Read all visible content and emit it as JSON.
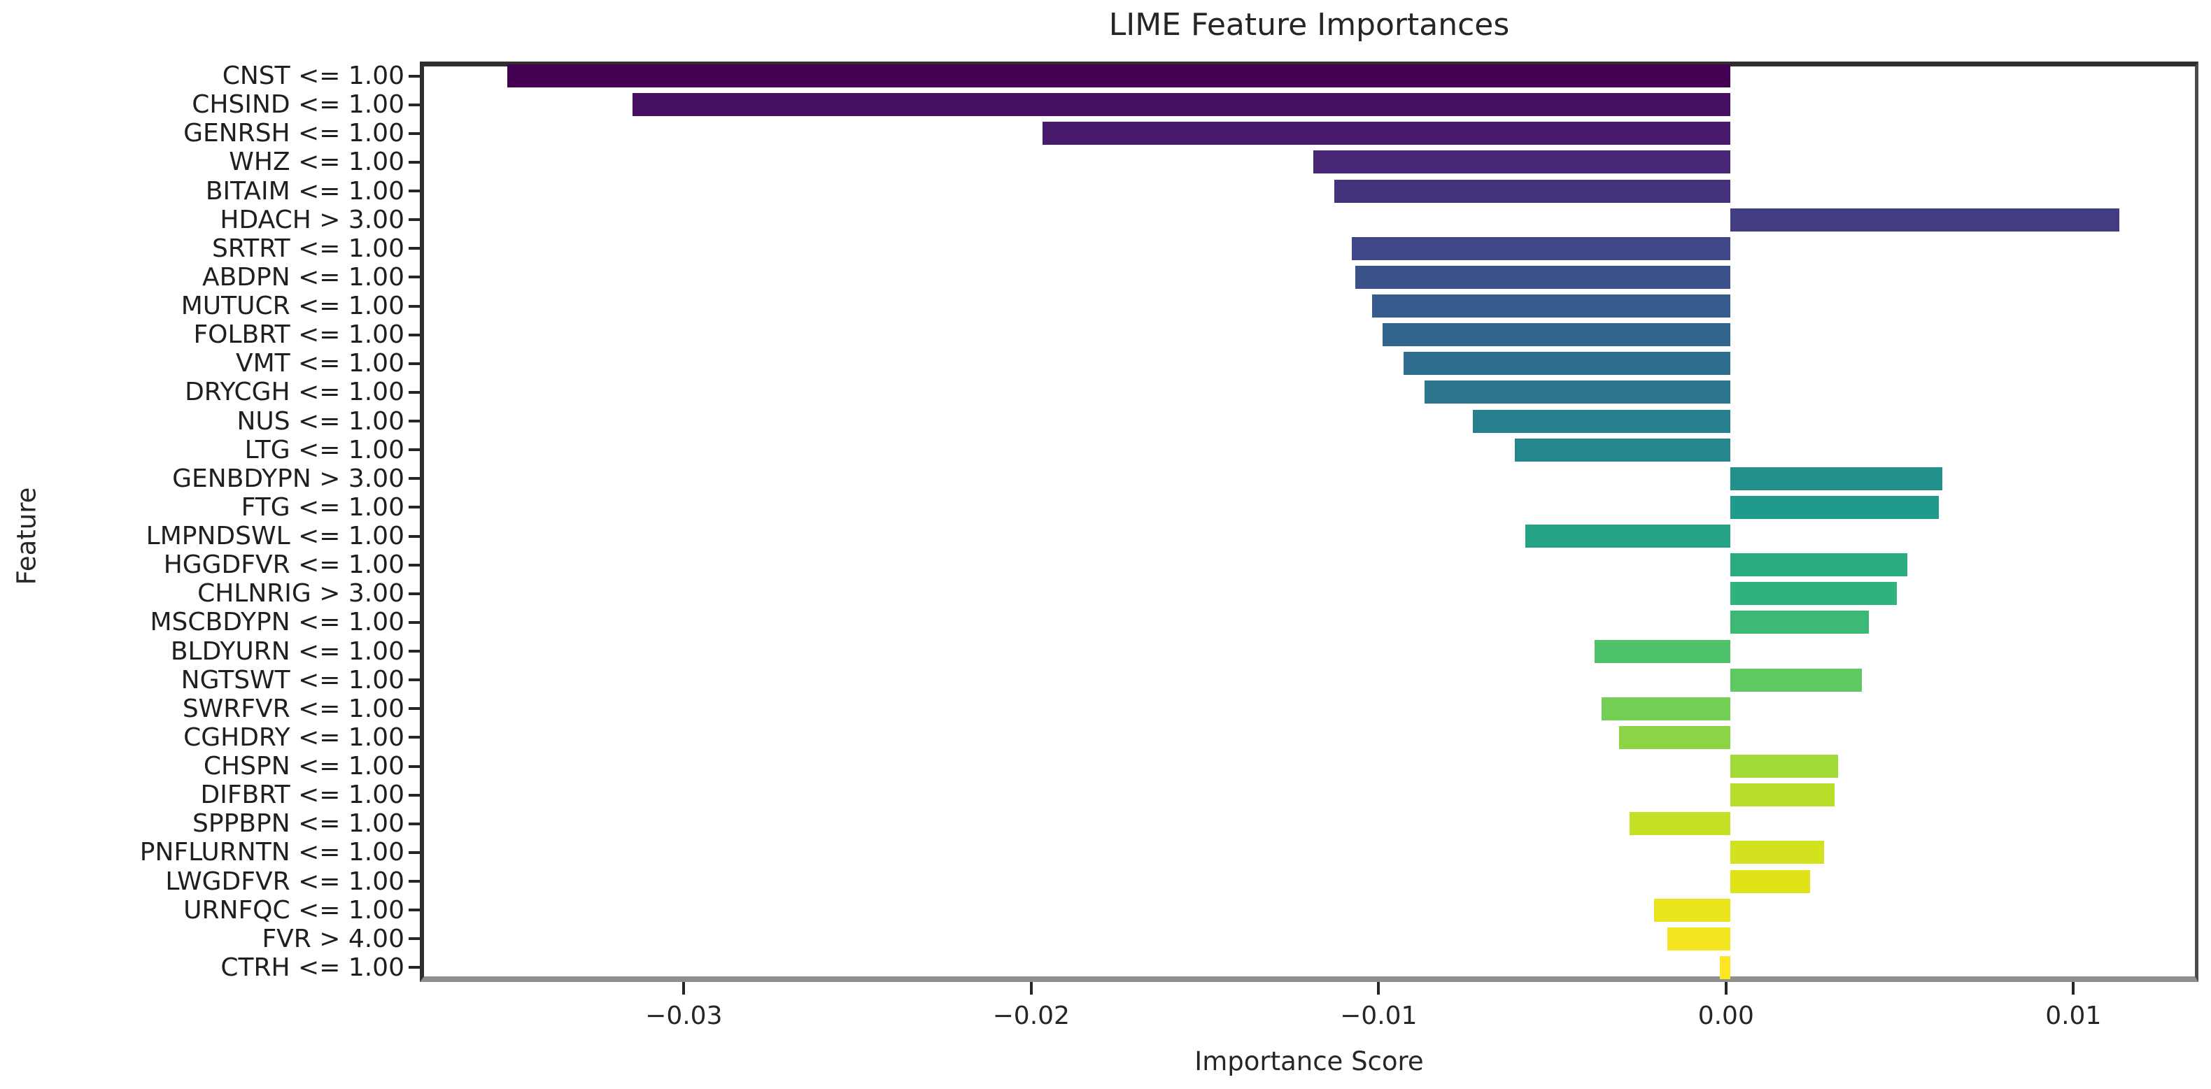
{
  "figure": {
    "title": "LIME Feature Importances",
    "xlabel": "Importance Score",
    "ylabel": "Feature"
  },
  "chart_data": {
    "type": "bar",
    "orientation": "horizontal",
    "title": "LIME Feature Importances",
    "xlabel": "Importance Score",
    "ylabel": "Feature",
    "xlim": [
      -0.0376,
      0.0136
    ],
    "grid": false,
    "legend": "none",
    "colormap": "viridis",
    "xticks": [
      {
        "value": -0.03,
        "label": "−0.03"
      },
      {
        "value": -0.02,
        "label": "−0.02"
      },
      {
        "value": -0.01,
        "label": "−0.01"
      },
      {
        "value": 0.0,
        "label": "0.00"
      },
      {
        "value": 0.01,
        "label": "0.01"
      }
    ],
    "bars": [
      {
        "label": "CNST <= 1.00",
        "value": -0.0352,
        "color": "#440154"
      },
      {
        "label": "CHSIND <= 1.00",
        "value": -0.0316,
        "color": "#450e60"
      },
      {
        "label": "GENRSH <= 1.00",
        "value": -0.0198,
        "color": "#471a6b"
      },
      {
        "label": "WHZ <= 1.00",
        "value": -0.012,
        "color": "#482777"
      },
      {
        "label": "BITAIM <= 1.00",
        "value": -0.0114,
        "color": "#45327d"
      },
      {
        "label": "HDACH > 3.00",
        "value": 0.0112,
        "color": "#423c82"
      },
      {
        "label": "SRTRT <= 1.00",
        "value": -0.0109,
        "color": "#3f4788"
      },
      {
        "label": "ABDPN <= 1.00",
        "value": -0.0108,
        "color": "#3b518a"
      },
      {
        "label": "MUTUCR <= 1.00",
        "value": -0.0103,
        "color": "#365b8c"
      },
      {
        "label": "FOLBRT <= 1.00",
        "value": -0.01,
        "color": "#32658d"
      },
      {
        "label": "VMT <= 1.00",
        "value": -0.0094,
        "color": "#2f6e8e"
      },
      {
        "label": "DRYCGH <= 1.00",
        "value": -0.0088,
        "color": "#2b768e"
      },
      {
        "label": "NUS <= 1.00",
        "value": -0.0074,
        "color": "#277f8e"
      },
      {
        "label": "LTG <= 1.00",
        "value": -0.0062,
        "color": "#25878d"
      },
      {
        "label": "GENBDYPN > 3.00",
        "value": 0.0061,
        "color": "#22908b"
      },
      {
        "label": "FTG <= 1.00",
        "value": 0.006,
        "color": "#209a8a"
      },
      {
        "label": "LMPNDSWL <= 1.00",
        "value": -0.0059,
        "color": "#23a286"
      },
      {
        "label": "HGGDFVR <= 1.00",
        "value": 0.0051,
        "color": "#2aaa81"
      },
      {
        "label": "CHLNRIG > 3.00",
        "value": 0.0048,
        "color": "#31b27c"
      },
      {
        "label": "MSCBDYPN <= 1.00",
        "value": 0.004,
        "color": "#3cba75"
      },
      {
        "label": "BLDYURN <= 1.00",
        "value": -0.0039,
        "color": "#4ec16b"
      },
      {
        "label": "NGTSWT <= 1.00",
        "value": 0.0038,
        "color": "#60c860"
      },
      {
        "label": "SWRFVR <= 1.00",
        "value": -0.0037,
        "color": "#74cf55"
      },
      {
        "label": "CGHDRY <= 1.00",
        "value": -0.0032,
        "color": "#8bd446"
      },
      {
        "label": "CHSPN <= 1.00",
        "value": 0.0031,
        "color": "#a2da37"
      },
      {
        "label": "DIFBRT <= 1.00",
        "value": 0.003,
        "color": "#b8de2a"
      },
      {
        "label": "SPPBPN <= 1.00",
        "value": -0.0029,
        "color": "#c5e024"
      },
      {
        "label": "PNFLURNTN <= 1.00",
        "value": 0.0027,
        "color": "#d3e21e"
      },
      {
        "label": "LWGDFVR <= 1.00",
        "value": 0.0023,
        "color": "#e0e318"
      },
      {
        "label": "URNFQC <= 1.00",
        "value": -0.0022,
        "color": "#eae41d"
      },
      {
        "label": "FVR > 4.00",
        "value": -0.0018,
        "color": "#f3e621"
      },
      {
        "label": "CTRH <= 1.00",
        "value": -0.0003,
        "color": "#fde725"
      }
    ]
  }
}
